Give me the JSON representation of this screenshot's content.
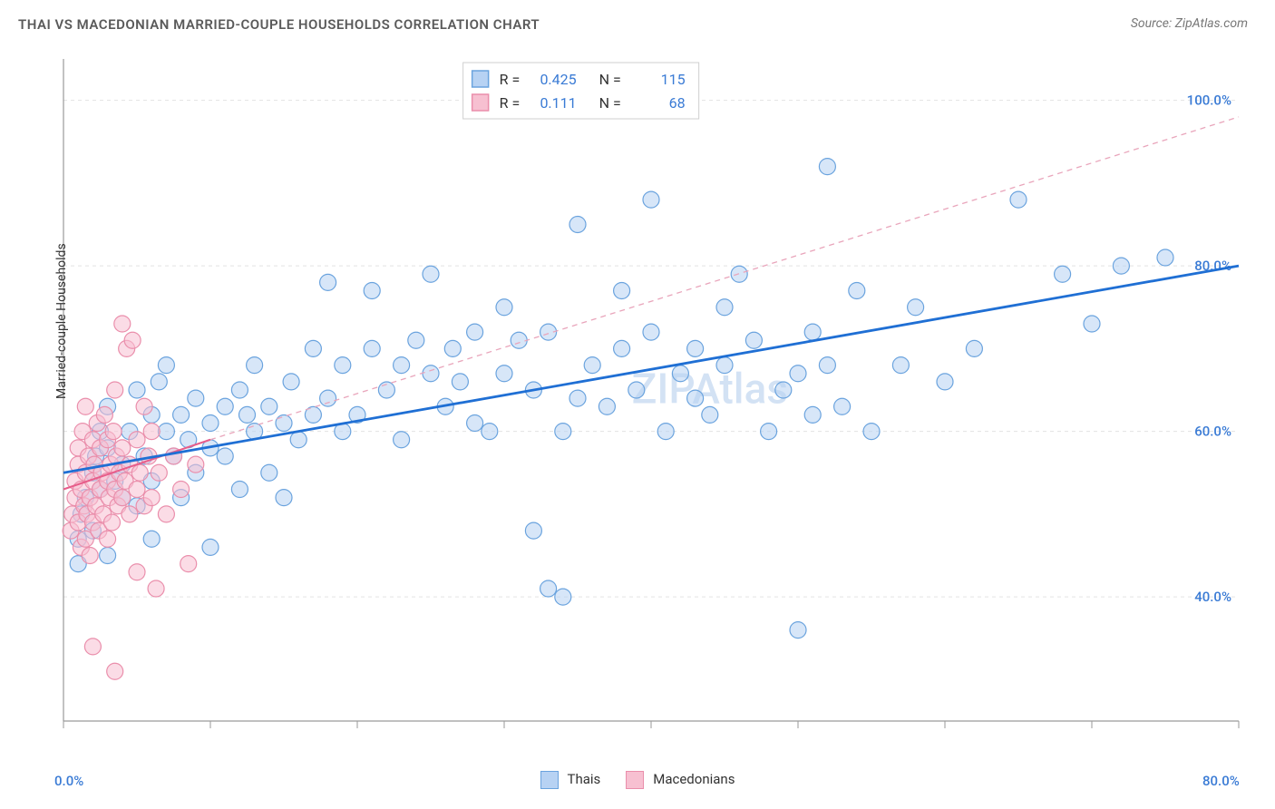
{
  "chart": {
    "type": "scatter",
    "title": "THAI VS MACEDONIAN MARRIED-COUPLE HOUSEHOLDS CORRELATION CHART",
    "title_fontsize": 15,
    "title_color": "#5a5a5a",
    "source_label": "Source: ZipAtlas.com",
    "source_fontsize": 14,
    "source_color": "#777777",
    "ylabel": "Married-couple Households",
    "ylabel_fontsize": 14,
    "ylabel_color": "#333333",
    "background_color": "#ffffff",
    "grid_color": "#e3e3e3",
    "axis_line_color": "#9a9a9a",
    "tick_length": 8,
    "watermark_text": "ZIPAtlas",
    "watermark_color": "#b7cfee",
    "watermark_fontsize": 46,
    "xlim": [
      0,
      80
    ],
    "ylim": [
      25,
      105
    ],
    "x_tick_positions": [
      0,
      10,
      20,
      30,
      40,
      50,
      60,
      70,
      80
    ],
    "y_tick_positions": [
      40,
      60,
      80,
      100
    ],
    "y_tick_labels": [
      "40.0%",
      "60.0%",
      "80.0%",
      "100.0%"
    ],
    "x_axis_left_label": "0.0%",
    "x_axis_right_label": "80.0%",
    "axis_label_color": "#3a7bd5",
    "axis_label_fontsize": 15,
    "marker_radius": 9,
    "marker_stroke_width": 1.2,
    "series": [
      {
        "name": "Thais",
        "fill_color": "#b7d2f3",
        "stroke_color": "#6aa3de",
        "fill_opacity": 0.55,
        "r": 0.425,
        "n": 115,
        "trend": {
          "x1": 0,
          "y1": 55,
          "x2": 80,
          "y2": 80,
          "stroke": "#1f6fd4",
          "stroke_width": 2.8,
          "dash": null
        },
        "points": [
          [
            1,
            47
          ],
          [
            1.2,
            50
          ],
          [
            1.5,
            52
          ],
          [
            2,
            48
          ],
          [
            2,
            55
          ],
          [
            2.2,
            57
          ],
          [
            2.5,
            53
          ],
          [
            2.5,
            60
          ],
          [
            3,
            58
          ],
          [
            3,
            63
          ],
          [
            3.5,
            54
          ],
          [
            4,
            52
          ],
          [
            4,
            56
          ],
          [
            4.5,
            60
          ],
          [
            5,
            51
          ],
          [
            5,
            65
          ],
          [
            5.5,
            57
          ],
          [
            6,
            54
          ],
          [
            6,
            62
          ],
          [
            6.5,
            66
          ],
          [
            7,
            60
          ],
          [
            7,
            68
          ],
          [
            7.5,
            57
          ],
          [
            8,
            52
          ],
          [
            8,
            62
          ],
          [
            8.5,
            59
          ],
          [
            9,
            55
          ],
          [
            9,
            64
          ],
          [
            10,
            61
          ],
          [
            10,
            58
          ],
          [
            11,
            63
          ],
          [
            11,
            57
          ],
          [
            12,
            65
          ],
          [
            12,
            53
          ],
          [
            12.5,
            62
          ],
          [
            13,
            60
          ],
          [
            13,
            68
          ],
          [
            14,
            63
          ],
          [
            14,
            55
          ],
          [
            15,
            61
          ],
          [
            15,
            52
          ],
          [
            15.5,
            66
          ],
          [
            16,
            59
          ],
          [
            17,
            70
          ],
          [
            17,
            62
          ],
          [
            18,
            78
          ],
          [
            18,
            64
          ],
          [
            19,
            68
          ],
          [
            19,
            60
          ],
          [
            20,
            62
          ],
          [
            21,
            70
          ],
          [
            21,
            77
          ],
          [
            22,
            65
          ],
          [
            23,
            59
          ],
          [
            23,
            68
          ],
          [
            24,
            71
          ],
          [
            25,
            79
          ],
          [
            25,
            67
          ],
          [
            26,
            63
          ],
          [
            26.5,
            70
          ],
          [
            27,
            66
          ],
          [
            28,
            72
          ],
          [
            28,
            61
          ],
          [
            29,
            60
          ],
          [
            30,
            67
          ],
          [
            30,
            75
          ],
          [
            31,
            71
          ],
          [
            32,
            48
          ],
          [
            32,
            65
          ],
          [
            33,
            41
          ],
          [
            33,
            72
          ],
          [
            34,
            40
          ],
          [
            34,
            60
          ],
          [
            35,
            64
          ],
          [
            35,
            85
          ],
          [
            36,
            68
          ],
          [
            37,
            63
          ],
          [
            38,
            70
          ],
          [
            38,
            77
          ],
          [
            39,
            65
          ],
          [
            40,
            88
          ],
          [
            40,
            72
          ],
          [
            41,
            60
          ],
          [
            42,
            67
          ],
          [
            43,
            70
          ],
          [
            43,
            64
          ],
          [
            44,
            62
          ],
          [
            45,
            75
          ],
          [
            45,
            68
          ],
          [
            46,
            79
          ],
          [
            47,
            71
          ],
          [
            48,
            60
          ],
          [
            49,
            65
          ],
          [
            50,
            67
          ],
          [
            50,
            36
          ],
          [
            51,
            72
          ],
          [
            52,
            92
          ],
          [
            52,
            68
          ],
          [
            53,
            63
          ],
          [
            54,
            77
          ],
          [
            55,
            60
          ],
          [
            57,
            68
          ],
          [
            58,
            75
          ],
          [
            60,
            66
          ],
          [
            62,
            70
          ],
          [
            65,
            88
          ],
          [
            68,
            79
          ],
          [
            70,
            73
          ],
          [
            72,
            80
          ],
          [
            75,
            81
          ],
          [
            51,
            62
          ],
          [
            10,
            46
          ],
          [
            6,
            47
          ],
          [
            3,
            45
          ],
          [
            1,
            44
          ]
        ]
      },
      {
        "name": "Macedonians",
        "fill_color": "#f7c0d1",
        "stroke_color": "#ea8eab",
        "fill_opacity": 0.55,
        "r": 0.111,
        "n": 68,
        "trend": {
          "x1": 0,
          "y1": 53,
          "x2": 10,
          "y2": 59,
          "stroke": "#e75d8a",
          "stroke_width": 2,
          "dash": null
        },
        "trend_ext": {
          "x1": 10,
          "y1": 59,
          "x2": 80,
          "y2": 98,
          "stroke": "#e9a5bb",
          "stroke_width": 1.3,
          "dash": "6,5"
        },
        "points": [
          [
            0.5,
            48
          ],
          [
            0.6,
            50
          ],
          [
            0.8,
            52
          ],
          [
            0.8,
            54
          ],
          [
            1,
            49
          ],
          [
            1,
            56
          ],
          [
            1,
            58
          ],
          [
            1.2,
            46
          ],
          [
            1.2,
            53
          ],
          [
            1.3,
            60
          ],
          [
            1.4,
            51
          ],
          [
            1.5,
            47
          ],
          [
            1.5,
            55
          ],
          [
            1.5,
            63
          ],
          [
            1.6,
            50
          ],
          [
            1.7,
            57
          ],
          [
            1.8,
            45
          ],
          [
            1.8,
            52
          ],
          [
            2,
            54
          ],
          [
            2,
            59
          ],
          [
            2,
            49
          ],
          [
            2.1,
            56
          ],
          [
            2.2,
            51
          ],
          [
            2.3,
            61
          ],
          [
            2.4,
            48
          ],
          [
            2.5,
            53
          ],
          [
            2.5,
            58
          ],
          [
            2.6,
            55
          ],
          [
            2.7,
            50
          ],
          [
            2.8,
            62
          ],
          [
            3,
            47
          ],
          [
            3,
            54
          ],
          [
            3,
            59
          ],
          [
            3.1,
            52
          ],
          [
            3.2,
            56
          ],
          [
            3.3,
            49
          ],
          [
            3.4,
            60
          ],
          [
            3.5,
            53
          ],
          [
            3.5,
            65
          ],
          [
            3.6,
            57
          ],
          [
            3.7,
            51
          ],
          [
            3.8,
            55
          ],
          [
            4,
            52
          ],
          [
            4,
            58
          ],
          [
            4,
            73
          ],
          [
            4.2,
            54
          ],
          [
            4.3,
            70
          ],
          [
            4.5,
            50
          ],
          [
            4.5,
            56
          ],
          [
            4.7,
            71
          ],
          [
            5,
            53
          ],
          [
            5,
            59
          ],
          [
            5,
            43
          ],
          [
            5.2,
            55
          ],
          [
            5.5,
            51
          ],
          [
            5.5,
            63
          ],
          [
            5.8,
            57
          ],
          [
            6,
            52
          ],
          [
            6,
            60
          ],
          [
            6.3,
            41
          ],
          [
            6.5,
            55
          ],
          [
            7,
            50
          ],
          [
            7.5,
            57
          ],
          [
            8,
            53
          ],
          [
            8.5,
            44
          ],
          [
            9,
            56
          ],
          [
            2,
            34
          ],
          [
            3.5,
            31
          ]
        ]
      }
    ],
    "stats_box": {
      "x": 0.34,
      "y_top": 0.0,
      "border_color": "#cfcfcf",
      "background": "#ffffff",
      "swatch_border_width": 1.5,
      "text_color_label": "#333333",
      "text_color_value": "#3a7bd5",
      "fontsize": 16
    },
    "bottom_legend": {
      "swatch_size": 18,
      "fontsize": 15,
      "text_color": "#333333"
    }
  }
}
